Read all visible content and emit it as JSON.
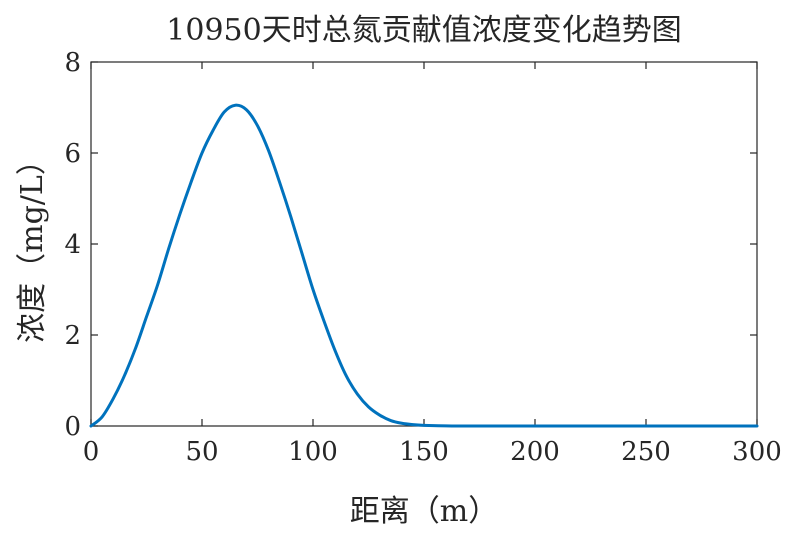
{
  "chart_data": {
    "type": "line",
    "title": "10950天时总氮贡献值浓度变化趋势图",
    "xlabel": "距离（m）",
    "ylabel": "浓度（mg/L）",
    "xlim": [
      0,
      300
    ],
    "ylim": [
      0,
      8
    ],
    "x_ticks": [
      "0",
      "50",
      "100",
      "150",
      "200",
      "250",
      "300"
    ],
    "y_ticks": [
      "0",
      "2",
      "4",
      "6",
      "8"
    ],
    "grid": false,
    "legend": "none",
    "series": [
      {
        "color": "#0072BD",
        "points": [
          [
            0,
            0.0
          ],
          [
            5,
            0.2
          ],
          [
            10,
            0.6
          ],
          [
            15,
            1.1
          ],
          [
            20,
            1.7
          ],
          [
            25,
            2.4
          ],
          [
            30,
            3.1
          ],
          [
            35,
            3.9
          ],
          [
            40,
            4.65
          ],
          [
            45,
            5.35
          ],
          [
            50,
            6.0
          ],
          [
            55,
            6.5
          ],
          [
            60,
            6.9
          ],
          [
            65,
            7.05
          ],
          [
            70,
            6.95
          ],
          [
            75,
            6.6
          ],
          [
            80,
            6.05
          ],
          [
            85,
            5.35
          ],
          [
            90,
            4.6
          ],
          [
            95,
            3.8
          ],
          [
            100,
            3.0
          ],
          [
            105,
            2.3
          ],
          [
            110,
            1.65
          ],
          [
            115,
            1.1
          ],
          [
            120,
            0.7
          ],
          [
            125,
            0.42
          ],
          [
            130,
            0.24
          ],
          [
            135,
            0.12
          ],
          [
            140,
            0.06
          ],
          [
            145,
            0.03
          ],
          [
            150,
            0.015
          ],
          [
            160,
            0.003
          ],
          [
            170,
            0.0
          ],
          [
            200,
            0.0
          ],
          [
            250,
            0.0
          ],
          [
            300,
            0.0
          ]
        ]
      }
    ]
  }
}
